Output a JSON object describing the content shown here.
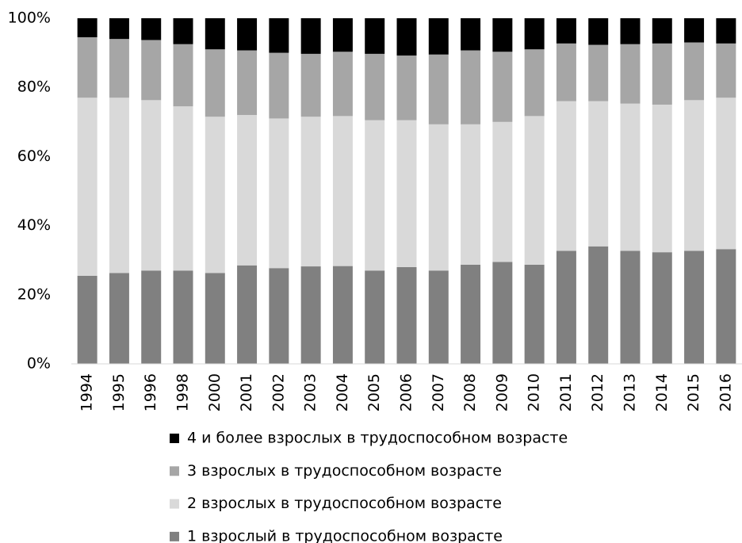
{
  "chart_data": {
    "type": "stacked_bar",
    "categories": [
      "1994",
      "1995",
      "1996",
      "1998",
      "2000",
      "2001",
      "2002",
      "2003",
      "2004",
      "2005",
      "2006",
      "2007",
      "2008",
      "2009",
      "2010",
      "2011",
      "2012",
      "2013",
      "2014",
      "2015",
      "2016"
    ],
    "series": [
      {
        "name": "1 взрослый в трудоспособном возрасте",
        "color": "#808080",
        "values": [
          25.5,
          26.3,
          27,
          27,
          26.3,
          28.5,
          27.7,
          28.2,
          28.3,
          27,
          28,
          27,
          28.7,
          29.5,
          28.7,
          32.7,
          34,
          32.7,
          32.3,
          32.7,
          33.2
        ]
      },
      {
        "name": "2 взрослых в трудоспособном возрасте",
        "color": "#d9d9d9",
        "values": [
          51.5,
          50.7,
          49.3,
          47.5,
          45.2,
          43.5,
          43.3,
          43.3,
          43.4,
          43.5,
          42.5,
          42.3,
          40.6,
          40.5,
          43,
          43.3,
          42,
          42.6,
          42.7,
          43.6,
          43.8
        ]
      },
      {
        "name": "3 взрослых в трудоспособном возрасте",
        "color": "#a6a6a6",
        "values": [
          17.5,
          17,
          17.4,
          18,
          19.5,
          18.7,
          19,
          18.2,
          18.6,
          19.2,
          18.7,
          20.2,
          21.4,
          20.3,
          19.3,
          16.7,
          16.3,
          17.2,
          17.7,
          16.7,
          15.7
        ]
      },
      {
        "name": "4 и более взрослых в трудоспособном возрасте",
        "color": "#000000",
        "values": [
          5.5,
          6,
          6.3,
          7.5,
          9,
          9.3,
          10,
          10.3,
          9.7,
          10.3,
          10.8,
          10.5,
          9.3,
          9.7,
          9,
          7.3,
          7.7,
          7.5,
          7.3,
          7,
          7.3
        ]
      }
    ],
    "ylim": [
      0,
      100
    ],
    "yticks": [
      {
        "value": 0,
        "label": "0%"
      },
      {
        "value": 20,
        "label": "20%"
      },
      {
        "value": 40,
        "label": "40%"
      },
      {
        "value": 60,
        "label": "60%"
      },
      {
        "value": 80,
        "label": "80%"
      },
      {
        "value": 100,
        "label": "100%"
      }
    ],
    "grid": false
  }
}
